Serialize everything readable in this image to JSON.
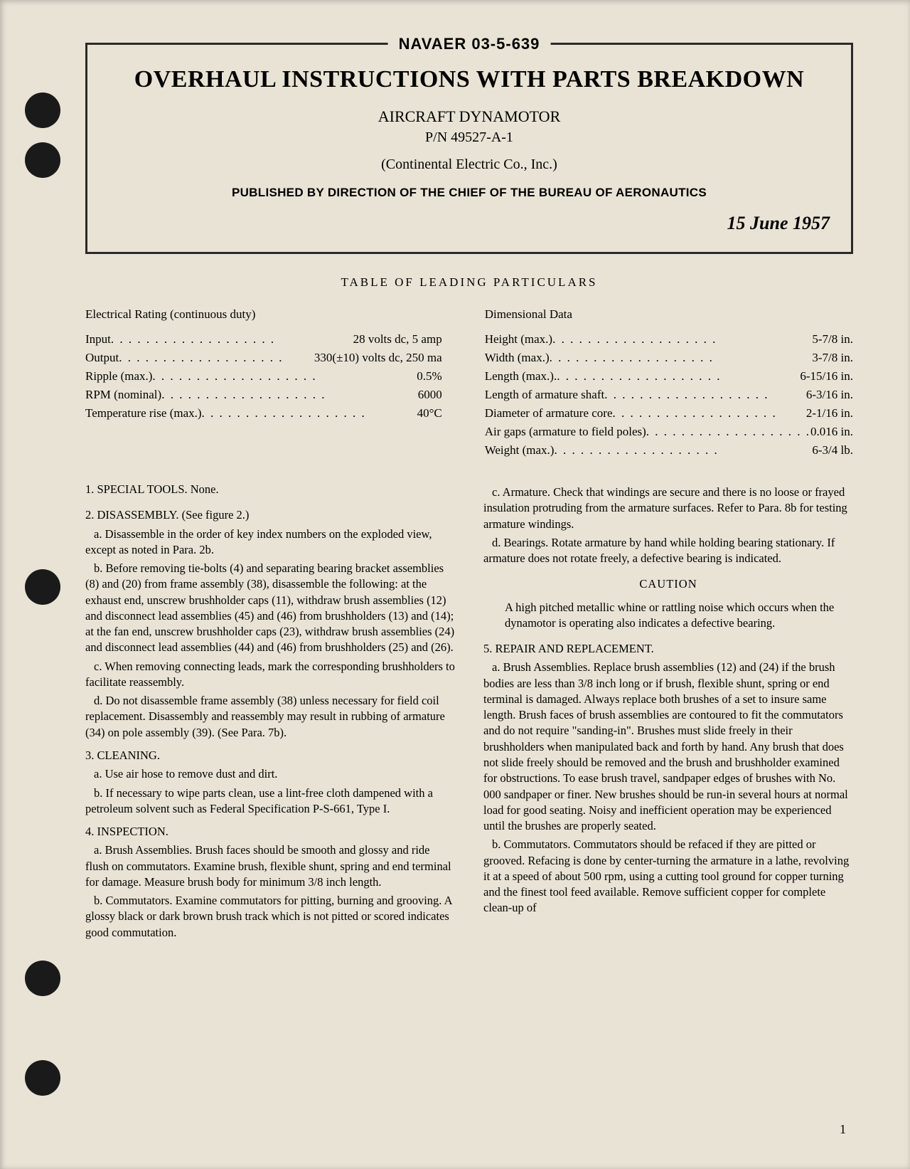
{
  "holes": [
    130,
    200,
    800,
    1350,
    1490
  ],
  "header": {
    "doc_number": "NAVAER 03-5-639",
    "title": "OVERHAUL INSTRUCTIONS WITH PARTS BREAKDOWN",
    "subtitle": "AIRCRAFT DYNAMOTOR",
    "part_number": "P/N 49527-A-1",
    "company": "(Continental Electric Co., Inc.)",
    "published": "PUBLISHED BY DIRECTION OF THE CHIEF OF THE BUREAU OF AERONAUTICS",
    "date": "15 June 1957"
  },
  "table": {
    "title": "TABLE OF LEADING PARTICULARS",
    "left_heading": "Electrical Rating (continuous duty)",
    "right_heading": "Dimensional Data",
    "left": [
      {
        "label": "Input",
        "value": "28 volts dc, 5 amp"
      },
      {
        "label": "Output",
        "value": "330(±10) volts dc, 250 ma"
      },
      {
        "label": "Ripple (max.)",
        "value": "0.5%"
      },
      {
        "label": "RPM (nominal)",
        "value": "6000"
      },
      {
        "label": "Temperature rise (max.)",
        "value": "40°C"
      }
    ],
    "right": [
      {
        "label": "Height (max.)",
        "value": "5-7/8 in."
      },
      {
        "label": "Width (max.)",
        "value": "3-7/8 in."
      },
      {
        "label": "Length (max.).",
        "value": "6-15/16 in."
      },
      {
        "label": "Length of armature shaft",
        "value": "6-3/16 in."
      },
      {
        "label": "Diameter of armature core",
        "value": "2-1/16 in."
      },
      {
        "label": "Air gaps (armature to field poles)",
        "value": "0.016 in."
      },
      {
        "label": "Weight (max.)",
        "value": "6-3/4 lb."
      }
    ]
  },
  "sections": {
    "s1": {
      "title": "1. SPECIAL TOOLS. ",
      "text": "None."
    },
    "s2": {
      "title": "2. DISASSEMBLY. (See figure 2.)",
      "a": "a. Disassemble in the order of key index numbers on the exploded view, except as noted in Para. 2b.",
      "b": "b. Before removing tie-bolts (4) and separating bearing bracket assemblies (8) and (20) from frame assembly (38), disassemble the following: at the exhaust end, unscrew brushholder caps (11), withdraw brush assemblies (12) and disconnect lead assemblies (45) and (46) from brushholders (13) and (14); at the fan end, unscrew brushholder caps (23), withdraw brush assemblies (24) and disconnect lead assemblies (44) and (46) from brushholders (25) and (26).",
      "c": "c. When removing connecting leads, mark the corresponding brushholders to facilitate reassembly.",
      "d": "d. Do not disassemble frame assembly (38) unless necessary for field coil replacement. Disassembly and reassembly may result in rubbing of armature (34) on pole assembly (39). (See Para. 7b)."
    },
    "s3": {
      "title": "3. CLEANING.",
      "a": "a. Use air hose to remove dust and dirt.",
      "b": "b. If necessary to wipe parts clean, use a lint-free cloth dampened with a petroleum solvent such as Federal Specification P-S-661, Type I."
    },
    "s4": {
      "title": "4. INSPECTION.",
      "a": "a. Brush Assemblies. Brush faces should be smooth and glossy and ride flush on commutators. Examine brush, flexible shunt, spring and end terminal for damage. Measure brush body for minimum 3/8 inch length.",
      "b": "b. Commutators. Examine commutators for pitting, burning and grooving. A glossy black or dark brown brush track which is not pitted or scored indicates good commutation.",
      "c": "c. Armature. Check that windings are secure and there is no loose or frayed insulation protruding from the armature surfaces. Refer to Para. 8b for testing armature windings.",
      "d": "d. Bearings. Rotate armature by hand while holding bearing stationary. If armature does not rotate freely, a defective bearing is indicated."
    },
    "caution": {
      "title": "CAUTION",
      "body": "A high pitched metallic whine or rattling noise which occurs when the dynamotor is operating also indicates a defective bearing."
    },
    "s5": {
      "title": "5. REPAIR AND REPLACEMENT.",
      "a": "a. Brush Assemblies. Replace brush assemblies (12) and (24) if the brush bodies are less than 3/8 inch long or if brush, flexible shunt, spring or end terminal is damaged. Always replace both brushes of a set to insure same length. Brush faces of brush assemblies are contoured to fit the commutators and do not require \"sanding-in\". Brushes must slide freely in their brushholders when manipulated back and forth by hand. Any brush that does not slide freely should be removed and the brush and brushholder examined for obstructions. To ease brush travel, sandpaper edges of brushes with No. 000 sandpaper or finer. New brushes should be run-in several hours at normal load for good seating. Noisy and inefficient operation may be experienced until the brushes are properly seated.",
      "b": "b. Commutators. Commutators should be refaced if they are pitted or grooved. Refacing is done by center-turning the armature in a lathe, revolving it at a speed of about 500 rpm, using a cutting tool ground for copper turning and the finest tool feed available. Remove sufficient copper for complete clean-up of"
    }
  },
  "page_number": "1"
}
